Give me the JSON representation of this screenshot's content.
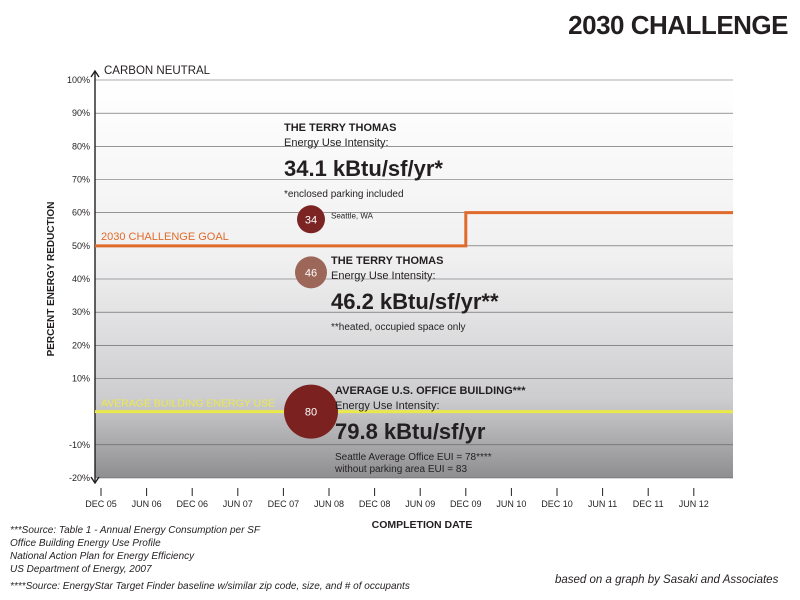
{
  "title": "2030 CHALLENGE",
  "credit": "based on a graph by Sasaki and Associates",
  "footnotes": {
    "source1": [
      "***Source: Table 1 - Annual Energy Consumption per SF",
      "Office Building Energy Use Profile",
      "National Action Plan for Energy Efficiency",
      "US Department of Energy, 2007"
    ],
    "source2": "****Source: EnergyStar Target Finder baseline w/similar zip code, size, and # of occupants"
  },
  "colors": {
    "goal_line": "#e06b2b",
    "average_line": "#ebe94a",
    "marker_34": "#7b2423",
    "marker_46": "#9c6658",
    "marker_80": "#7b2221"
  },
  "chart_data": {
    "type": "line",
    "xlabel": "COMPLETION DATE",
    "ylabel": "PERCENT ENERGY REDUCTION",
    "x_ticks": [
      "DEC 05",
      "JUN 06",
      "DEC 06",
      "JUN 07",
      "DEC 07",
      "JUN 08",
      "DEC 08",
      "JUN 09",
      "DEC 09",
      "JUN 10",
      "DEC 10",
      "JUN 11",
      "DEC 11",
      "JUN 12"
    ],
    "y_ticks": [
      "100%",
      "90%",
      "80%",
      "70%",
      "60%",
      "50%",
      "40%",
      "30%",
      "20%",
      "10%",
      "",
      "-10%",
      "-20%"
    ],
    "ylim": [
      -20,
      100
    ],
    "top_label": "CARBON NEUTRAL",
    "grid": true,
    "series": [
      {
        "name": "2030 CHALLENGE GOAL",
        "kind": "step",
        "points": [
          [
            "DEC 05",
            50
          ],
          [
            "DEC 09",
            50
          ],
          [
            "DEC 09",
            60
          ],
          [
            "JUN 12",
            60
          ]
        ]
      },
      {
        "name": "AVERAGE BUILDING ENERGY USE",
        "kind": "flat",
        "points": [
          [
            "DEC 05",
            0
          ],
          [
            "JUN 12",
            0
          ]
        ]
      }
    ],
    "markers": [
      {
        "value": "34",
        "x": "JUN 08",
        "y": 58,
        "location": "Seattle, WA",
        "callout": {
          "heading": "THE TERRY THOMAS",
          "subheading": "Energy Use Intensity:",
          "big": "34.1 kBtu/sf/yr*",
          "notes": [
            "*enclosed parking included"
          ]
        }
      },
      {
        "value": "46",
        "x": "JUN 08",
        "y": 42,
        "callout": {
          "heading": "THE TERRY THOMAS",
          "subheading": "Energy Use Intensity:",
          "big": "46.2 kBtu/sf/yr**",
          "notes": [
            "**heated, occupied space only"
          ]
        }
      },
      {
        "value": "80",
        "x": "JUN 08",
        "y": 0,
        "callout": {
          "heading": "AVERAGE U.S. OFFICE BUILDING***",
          "subheading": "Energy Use Intensity:",
          "big": "79.8 kBtu/sf/yr",
          "notes": [
            "Seattle Average Office EUI  = 78****",
            "without parking area EUI = 83"
          ]
        }
      }
    ]
  }
}
